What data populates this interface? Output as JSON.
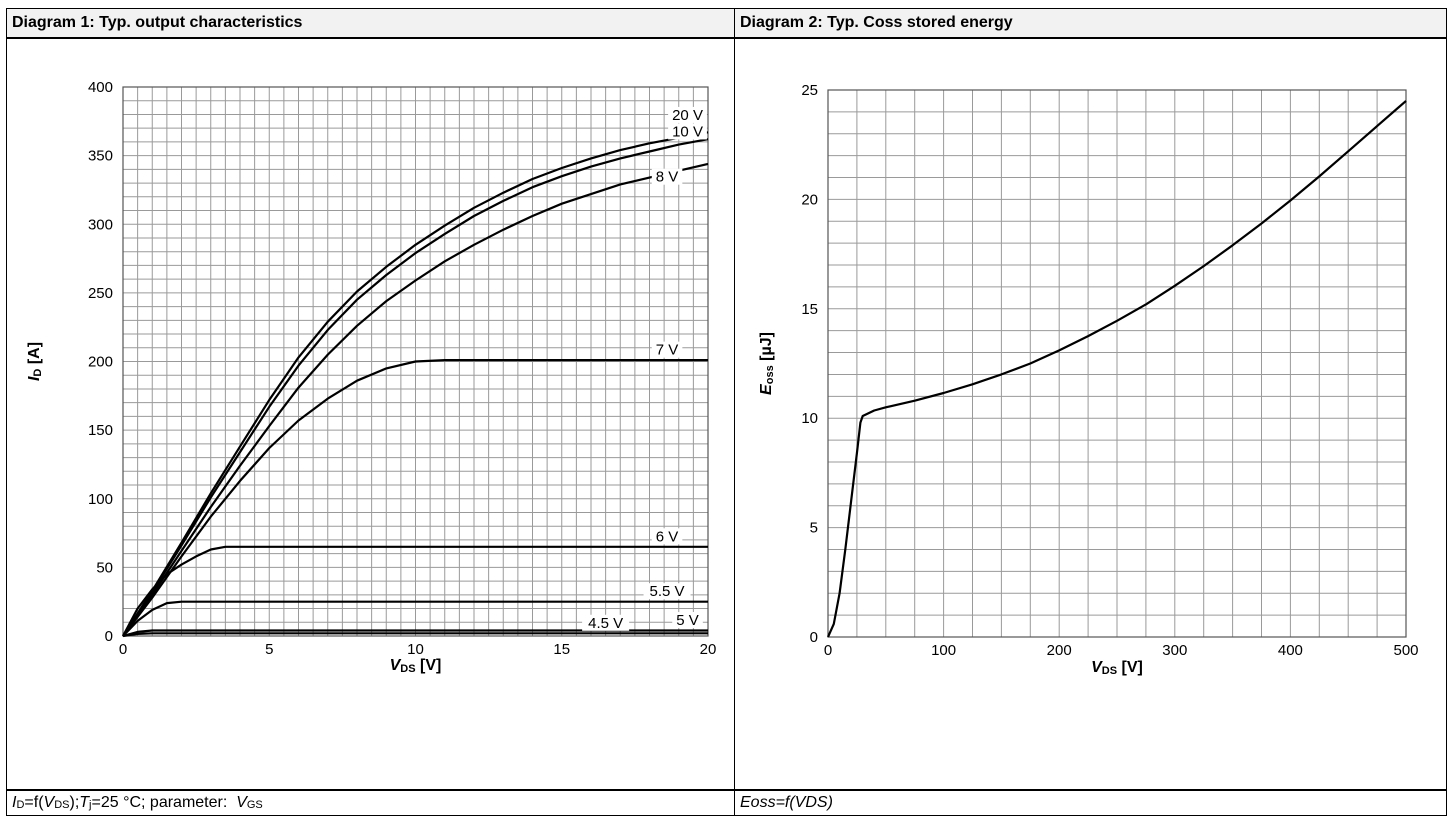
{
  "panels": {
    "left_title": "Diagram 1: Typ. output characteristics",
    "right_title": "Diagram 2: Typ. Coss stored energy",
    "left_caption": {
      "id": "I",
      "id_sub": "D",
      "eq": "=f(",
      "v": "V",
      "v_sub": "DS",
      "close": ");",
      "t": "T",
      "t_sub": "j",
      "rest": "=25 °C; parameter:  ",
      "vgs": "V",
      "vgs_sub": "GS"
    },
    "right_caption": "Eoss=f(VDS)"
  },
  "chart_data": [
    {
      "type": "line",
      "xlabel": {
        "main": "V",
        "sub": "DS",
        "unit": " [V]"
      },
      "ylabel": {
        "main": "I",
        "sub": "D",
        "unit": " [A]"
      },
      "xlim": [
        0,
        20
      ],
      "ylim": [
        0,
        400
      ],
      "xticks": [
        "0",
        "5",
        "10",
        "15",
        "20"
      ],
      "yticks": [
        "0",
        "50",
        "100",
        "150",
        "200",
        "250",
        "300",
        "350",
        "400"
      ],
      "grid": true,
      "series": [
        {
          "name": "20 V",
          "points": [
            [
              0,
              0
            ],
            [
              1,
              33
            ],
            [
              2,
              68
            ],
            [
              3,
              104
            ],
            [
              4,
              138
            ],
            [
              5,
              172
            ],
            [
              6,
              203
            ],
            [
              7,
              229
            ],
            [
              8,
              251
            ],
            [
              9,
              269
            ],
            [
              10,
              285
            ],
            [
              11,
              299
            ],
            [
              12,
              312
            ],
            [
              13,
              323
            ],
            [
              14,
              333
            ],
            [
              15,
              341
            ],
            [
              16,
              348
            ],
            [
              17,
              354
            ],
            [
              18,
              359
            ],
            [
              19,
              363
            ],
            [
              20,
              367
            ]
          ]
        },
        {
          "name": "10 V",
          "points": [
            [
              0,
              0
            ],
            [
              1,
              32
            ],
            [
              2,
              66
            ],
            [
              3,
              101
            ],
            [
              4,
              134
            ],
            [
              5,
              167
            ],
            [
              6,
              197
            ],
            [
              7,
              223
            ],
            [
              8,
              245
            ],
            [
              9,
              263
            ],
            [
              10,
              279
            ],
            [
              11,
              293
            ],
            [
              12,
              306
            ],
            [
              13,
              317
            ],
            [
              14,
              327
            ],
            [
              15,
              335
            ],
            [
              16,
              342
            ],
            [
              17,
              348
            ],
            [
              18,
              353
            ],
            [
              19,
              358
            ],
            [
              20,
              362
            ]
          ]
        },
        {
          "name": "8 V",
          "points": [
            [
              0,
              0
            ],
            [
              1,
              30
            ],
            [
              2,
              62
            ],
            [
              3,
              94
            ],
            [
              4,
              124
            ],
            [
              5,
              153
            ],
            [
              6,
              181
            ],
            [
              7,
              205
            ],
            [
              8,
              226
            ],
            [
              9,
              244
            ],
            [
              10,
              259
            ],
            [
              11,
              273
            ],
            [
              12,
              285
            ],
            [
              13,
              296
            ],
            [
              14,
              306
            ],
            [
              15,
              315
            ],
            [
              16,
              322
            ],
            [
              17,
              329
            ],
            [
              18,
              334
            ],
            [
              19,
              339
            ],
            [
              20,
              344
            ]
          ]
        },
        {
          "name": "7 V",
          "points": [
            [
              0,
              0
            ],
            [
              1,
              28
            ],
            [
              2,
              58
            ],
            [
              3,
              87
            ],
            [
              4,
              113
            ],
            [
              5,
              137
            ],
            [
              6,
              157
            ],
            [
              7,
              173
            ],
            [
              8,
              186
            ],
            [
              9,
              195
            ],
            [
              10,
              200
            ],
            [
              11,
              201
            ],
            [
              12,
              201
            ],
            [
              14,
              201
            ],
            [
              16,
              201
            ],
            [
              18,
              201
            ],
            [
              20,
              201
            ]
          ]
        },
        {
          "name": "6 V",
          "points": [
            [
              0,
              0
            ],
            [
              0.5,
              20
            ],
            [
              1,
              34
            ],
            [
              1.5,
              45
            ],
            [
              2,
              52
            ],
            [
              2.5,
              58
            ],
            [
              3,
              63
            ],
            [
              3.5,
              65
            ],
            [
              5,
              65
            ],
            [
              10,
              65
            ],
            [
              15,
              65
            ],
            [
              20,
              65
            ]
          ]
        },
        {
          "name": "5.5 V",
          "points": [
            [
              0,
              0
            ],
            [
              0.5,
              11
            ],
            [
              1,
              19
            ],
            [
              1.5,
              24
            ],
            [
              2,
              25
            ],
            [
              5,
              25
            ],
            [
              10,
              25
            ],
            [
              15,
              25
            ],
            [
              20,
              25
            ]
          ]
        },
        {
          "name": "5 V",
          "points": [
            [
              0,
              0
            ],
            [
              0.5,
              3
            ],
            [
              1,
              4
            ],
            [
              2,
              4
            ],
            [
              10,
              4
            ],
            [
              20,
              4
            ]
          ]
        },
        {
          "name": "4.5 V",
          "points": [
            [
              0,
              0
            ],
            [
              0.5,
              1.5
            ],
            [
              1,
              2
            ],
            [
              5,
              2
            ],
            [
              10,
              2
            ],
            [
              20,
              2
            ]
          ]
        }
      ]
    },
    {
      "type": "line",
      "xlabel": {
        "main": "V",
        "sub": "DS",
        "unit": " [V]"
      },
      "ylabel": {
        "main": "E",
        "sub": "oss",
        "unit": " [µJ]"
      },
      "xlim": [
        0,
        500
      ],
      "ylim": [
        0,
        25
      ],
      "xticks": [
        "0",
        "100",
        "200",
        "300",
        "400",
        "500"
      ],
      "yticks": [
        "0",
        "5",
        "10",
        "15",
        "20",
        "25"
      ],
      "grid": true,
      "series": [
        {
          "name": "",
          "points": [
            [
              0,
              0
            ],
            [
              5,
              0.6
            ],
            [
              10,
              2
            ],
            [
              15,
              4
            ],
            [
              20,
              6.2
            ],
            [
              25,
              8.4
            ],
            [
              28,
              9.8
            ],
            [
              30,
              10.1
            ],
            [
              40,
              10.35
            ],
            [
              50,
              10.5
            ],
            [
              75,
              10.8
            ],
            [
              100,
              11.15
            ],
            [
              125,
              11.55
            ],
            [
              150,
              12.0
            ],
            [
              175,
              12.5
            ],
            [
              200,
              13.1
            ],
            [
              225,
              13.75
            ],
            [
              250,
              14.45
            ],
            [
              275,
              15.2
            ],
            [
              300,
              16.05
            ],
            [
              325,
              16.95
            ],
            [
              350,
              17.9
            ],
            [
              375,
              18.9
            ],
            [
              400,
              19.95
            ],
            [
              425,
              21.05
            ],
            [
              450,
              22.2
            ],
            [
              475,
              23.35
            ],
            [
              500,
              24.5
            ]
          ]
        }
      ]
    }
  ]
}
